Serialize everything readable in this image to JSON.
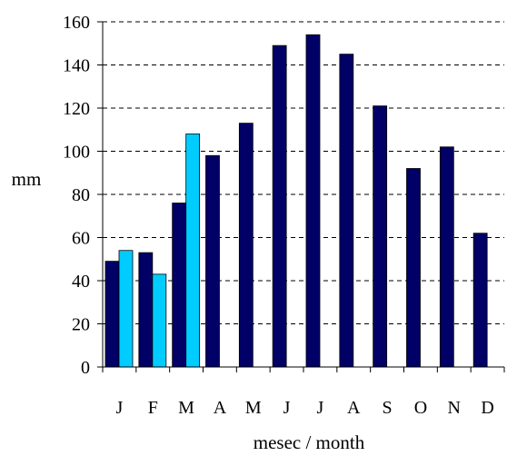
{
  "chart_data": {
    "type": "bar",
    "xlabel": "mesec / month",
    "ylabel": "mm",
    "ylim": [
      0,
      160
    ],
    "yticks": [
      0,
      20,
      40,
      60,
      80,
      100,
      120,
      140,
      160
    ],
    "grid": "horizontal dashed",
    "categories": [
      "J",
      "F",
      "M",
      "A",
      "M",
      "J",
      "J",
      "A",
      "S",
      "O",
      "N",
      "D"
    ],
    "series": [
      {
        "color": "#000066",
        "values": [
          49,
          53,
          76,
          98,
          113,
          149,
          154,
          145,
          121,
          92,
          102,
          62
        ]
      },
      {
        "color": "#00CCFF",
        "values": [
          54,
          43,
          108,
          null,
          null,
          null,
          null,
          null,
          null,
          null,
          null,
          null
        ]
      }
    ]
  }
}
